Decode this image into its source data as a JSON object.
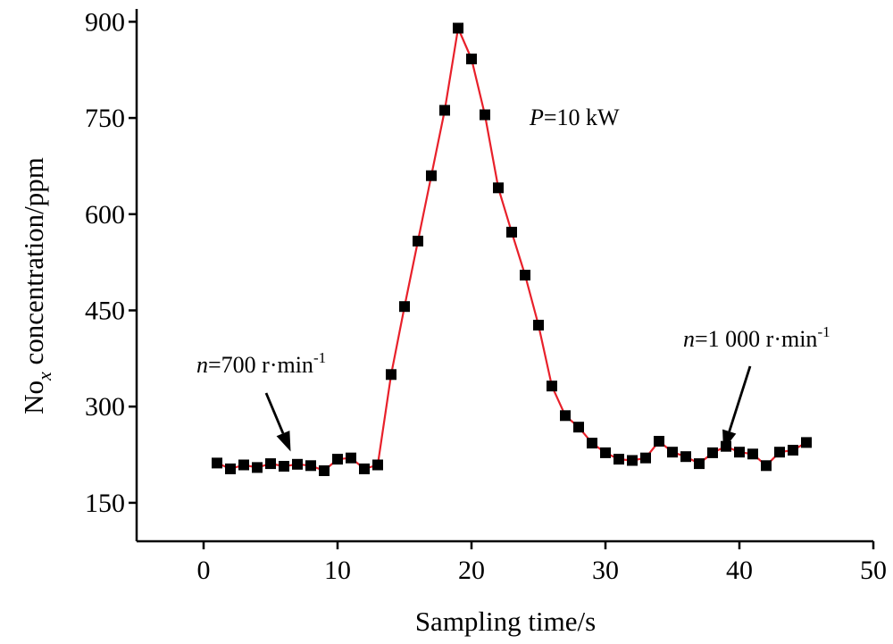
{
  "chart_data": {
    "type": "line",
    "xlabel": "Sampling time/s",
    "ylabel": {
      "prefix": "No",
      "sub": "x",
      "suffix": " concentration/ppm"
    },
    "xlim": [
      -5,
      50
    ],
    "ylim": [
      90,
      920
    ],
    "xticks": [
      0,
      10,
      20,
      30,
      40,
      50
    ],
    "yticks": [
      150,
      300,
      450,
      600,
      750,
      900
    ],
    "grid": false,
    "colors": {
      "line": "#e8202a",
      "marker": "#000000",
      "axis": "#000000"
    },
    "series": [
      {
        "marker": "square",
        "x": [
          1,
          2,
          3,
          4,
          5,
          6,
          7,
          8,
          9,
          10,
          11,
          12,
          13,
          14,
          15,
          16,
          17,
          18,
          19,
          20,
          21,
          22,
          23,
          24,
          25,
          26,
          27,
          28,
          29,
          30,
          31,
          32,
          33,
          34,
          35,
          36,
          37,
          38,
          39,
          40,
          41,
          42,
          43,
          44,
          45
        ],
        "y": [
          212,
          203,
          209,
          205,
          211,
          207,
          210,
          208,
          200,
          218,
          220,
          203,
          209,
          350,
          456,
          558,
          660,
          762,
          890,
          842,
          755,
          641,
          572,
          505,
          427,
          332,
          286,
          268,
          243,
          228,
          218,
          216,
          220,
          246,
          229,
          222,
          211,
          228,
          238,
          229,
          226,
          208,
          229,
          232,
          244
        ]
      }
    ],
    "annotations": [
      {
        "id": "p",
        "italic": "P",
        "text": "=10 kW"
      },
      {
        "id": "n700",
        "italic": "n",
        "text": "=700 r·min",
        "sup": "-1",
        "points_to": [
          6.5,
          230
        ]
      },
      {
        "id": "n1000",
        "italic": "n",
        "text": "=1 000 r·min",
        "sup": "-1",
        "points_to": [
          38.8,
          232
        ]
      }
    ]
  }
}
